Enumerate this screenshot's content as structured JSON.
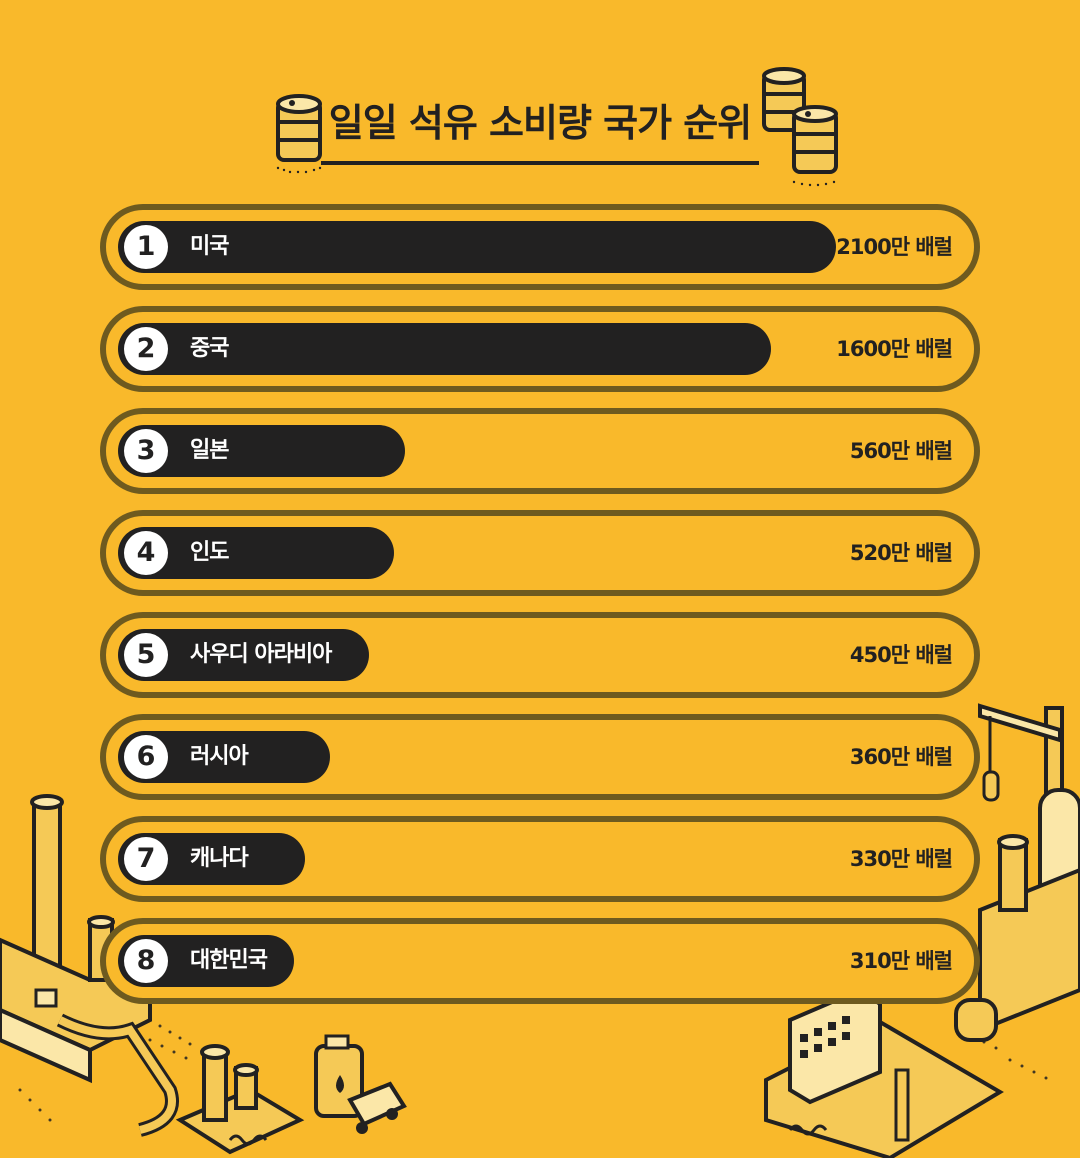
{
  "header": {
    "title": "일일 석유 소비량 국가 순위"
  },
  "colors": {
    "background": "#F9B92B",
    "bar": "#222121",
    "row_border": "#6E5A1F",
    "badge": "#FFFFFF"
  },
  "chart_data": {
    "type": "bar",
    "orientation": "horizontal",
    "title": "일일 석유 소비량 국가 순위",
    "unit": "만 배럴",
    "categories": [
      "미국",
      "중국",
      "일본",
      "인도",
      "사우디 아라비아",
      "러시아",
      "캐나다",
      "대한민국"
    ],
    "values": [
      2100,
      1600,
      560,
      520,
      450,
      360,
      330,
      310
    ],
    "ranks": [
      "1",
      "2",
      "3",
      "4",
      "5",
      "6",
      "7",
      "8"
    ],
    "value_labels": [
      "2100만 배럴",
      "1600만 배럴",
      "560만 배럴",
      "520만 배럴",
      "450만 배럴",
      "360만 배럴",
      "330만 배럴",
      "310만 배럴"
    ],
    "bar_fractions": [
      1.0,
      0.91,
      0.4,
      0.385,
      0.35,
      0.295,
      0.26,
      0.245
    ],
    "grid": false,
    "legend": "none"
  }
}
